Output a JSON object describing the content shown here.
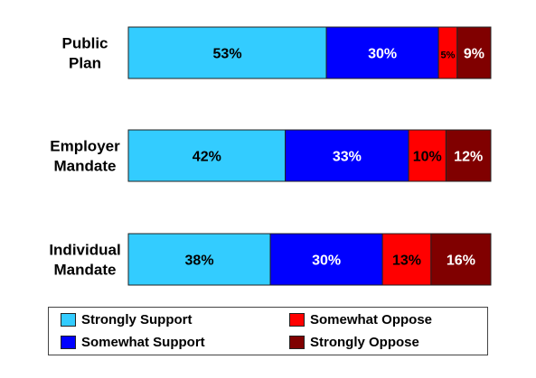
{
  "chart_data": {
    "type": "bar",
    "orientation": "horizontal",
    "stacked": true,
    "percent_stacked": true,
    "categories": [
      [
        "Public",
        "Plan"
      ],
      [
        "Employer",
        "Mandate"
      ],
      [
        "Individual",
        "Mandate"
      ]
    ],
    "series": [
      {
        "name": "Strongly Support",
        "color": "#33CCFF",
        "values": [
          53,
          42,
          38
        ],
        "labels": [
          "53%",
          "42%",
          "38%"
        ],
        "label_color": "#000000"
      },
      {
        "name": "Somewhat Support",
        "color": "#0000FF",
        "values": [
          30,
          33,
          30
        ],
        "labels": [
          "30%",
          "33%",
          "30%"
        ],
        "label_color": "#FFFFFF"
      },
      {
        "name": "Somewhat Oppose",
        "color": "#FF0000",
        "values": [
          5,
          10,
          13
        ],
        "labels": [
          "5%",
          "10%",
          "13%"
        ],
        "label_color": "#000000"
      },
      {
        "name": "Strongly Oppose",
        "color": "#800000",
        "values": [
          9,
          12,
          16
        ],
        "labels": [
          "9%",
          "12%",
          "16%"
        ],
        "label_color": "#FFFFFF"
      }
    ],
    "legend_position": "bottom",
    "legend_order": [
      [
        "Strongly Support",
        "Somewhat Oppose"
      ],
      [
        "Somewhat Support",
        "Strongly Oppose"
      ]
    ],
    "grid": false,
    "axes_visible": false
  }
}
